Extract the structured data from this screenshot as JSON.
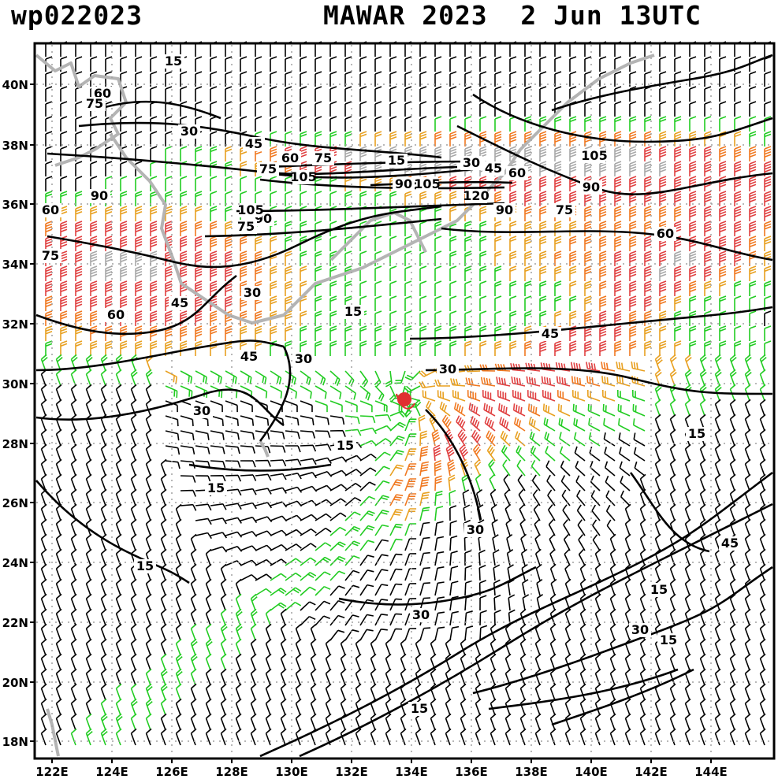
{
  "header": {
    "storm_id": "wp022023",
    "storm_time": "MAWAR 2023  2 Jun 13UTC"
  },
  "axes": {
    "lon_labels": [
      "122E",
      "124E",
      "126E",
      "128E",
      "130E",
      "132E",
      "134E",
      "136E",
      "138E",
      "140E",
      "142E",
      "144E"
    ],
    "lat_labels": [
      "40N",
      "38N",
      "36N",
      "34N",
      "32N",
      "30N",
      "28N",
      "26N",
      "24N",
      "22N",
      "20N",
      "18N"
    ]
  },
  "contour_labels": [
    "15",
    "60",
    "75",
    "30",
    "45",
    "60",
    "75",
    "15",
    "30",
    "45",
    "60",
    "75",
    "105",
    "90",
    "120",
    "105",
    "90",
    "105",
    "90",
    "90",
    "75",
    "75",
    "105",
    "90",
    "60",
    "60",
    "45",
    "30",
    "15",
    "60",
    "75",
    "45",
    "45",
    "30",
    "30",
    "30",
    "15",
    "15",
    "15",
    "15",
    "30",
    "45",
    "15",
    "30",
    "15",
    "30",
    "15"
  ],
  "colors": {
    "coast": "#b4b4b4",
    "grid": "#a0a0a0",
    "contour": "#000000",
    "barb_calm": "#000000",
    "barb_light": "#22cc22",
    "barb_moderate": "#e8a020",
    "barb_strong": "#f07820",
    "barb_gale": "#e04040",
    "barb_jet": "#a8a8a8",
    "storm_center": "#e03030"
  }
}
